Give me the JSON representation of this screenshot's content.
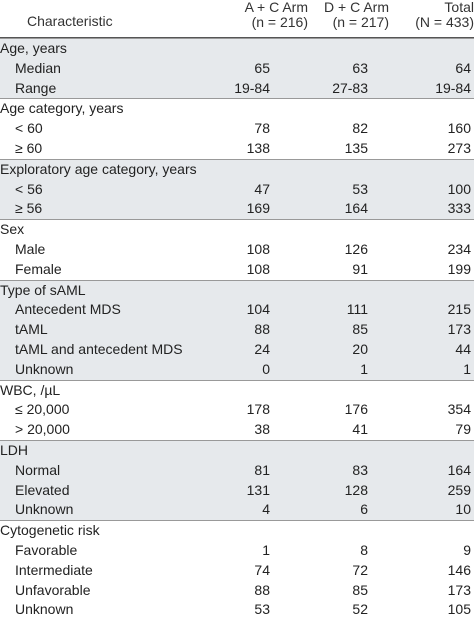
{
  "header": {
    "characteristic": "Characteristic",
    "arm_a_line1": "A + C Arm",
    "arm_a_line2": "(n = 216)",
    "arm_d_line1": "D + C Arm",
    "arm_d_line2": "(n = 217)",
    "total_line1": "Total",
    "total_line2": "(N = 433)"
  },
  "groups": [
    {
      "title": "Age, years",
      "shaded": true,
      "rows": [
        {
          "label": "Median",
          "a": "65",
          "d": "63",
          "t": "64"
        },
        {
          "label": "Range",
          "a": "19-84",
          "d": "27-83",
          "t": "19-84"
        }
      ]
    },
    {
      "title": "Age category, years",
      "shaded": false,
      "rows": [
        {
          "label": "< 60",
          "a": "78",
          "d": "82",
          "t": "160"
        },
        {
          "label": "≥ 60",
          "a": "138",
          "d": "135",
          "t": "273"
        }
      ]
    },
    {
      "title": "Exploratory age category, years",
      "shaded": true,
      "rows": [
        {
          "label": "< 56",
          "a": "47",
          "d": "53",
          "t": "100"
        },
        {
          "label": "≥ 56",
          "a": "169",
          "d": "164",
          "t": "333"
        }
      ]
    },
    {
      "title": "Sex",
      "shaded": false,
      "rows": [
        {
          "label": "Male",
          "a": "108",
          "d": "126",
          "t": "234"
        },
        {
          "label": "Female",
          "a": "108",
          "d": "91",
          "t": "199"
        }
      ]
    },
    {
      "title": "Type of sAML",
      "shaded": true,
      "rows": [
        {
          "label": "Antecedent MDS",
          "a": "104",
          "d": "111",
          "t": "215"
        },
        {
          "label": "tAML",
          "a": "88",
          "d": "85",
          "t": "173"
        },
        {
          "label": "tAML and antecedent MDS",
          "a": "24",
          "d": "20",
          "t": "44"
        },
        {
          "label": "Unknown",
          "a": "0",
          "d": "1",
          "t": "1"
        }
      ]
    },
    {
      "title": "WBC, /µL",
      "shaded": false,
      "rows": [
        {
          "label": "≤ 20,000",
          "a": "178",
          "d": "176",
          "t": "354"
        },
        {
          "label": "> 20,000",
          "a": "38",
          "d": "41",
          "t": "79"
        }
      ]
    },
    {
      "title": "LDH",
      "shaded": true,
      "rows": [
        {
          "label": "Normal",
          "a": "81",
          "d": "83",
          "t": "164"
        },
        {
          "label": "Elevated",
          "a": "131",
          "d": "128",
          "t": "259"
        },
        {
          "label": "Unknown",
          "a": "4",
          "d": "6",
          "t": "10"
        }
      ]
    },
    {
      "title": "Cytogenetic risk",
      "shaded": false,
      "rows": [
        {
          "label": "Favorable",
          "a": "1",
          "d": "8",
          "t": "9"
        },
        {
          "label": "Intermediate",
          "a": "74",
          "d": "72",
          "t": "146"
        },
        {
          "label": "Unfavorable",
          "a": "88",
          "d": "85",
          "t": "173"
        },
        {
          "label": "Unknown",
          "a": "53",
          "d": "52",
          "t": "105"
        }
      ]
    }
  ]
}
